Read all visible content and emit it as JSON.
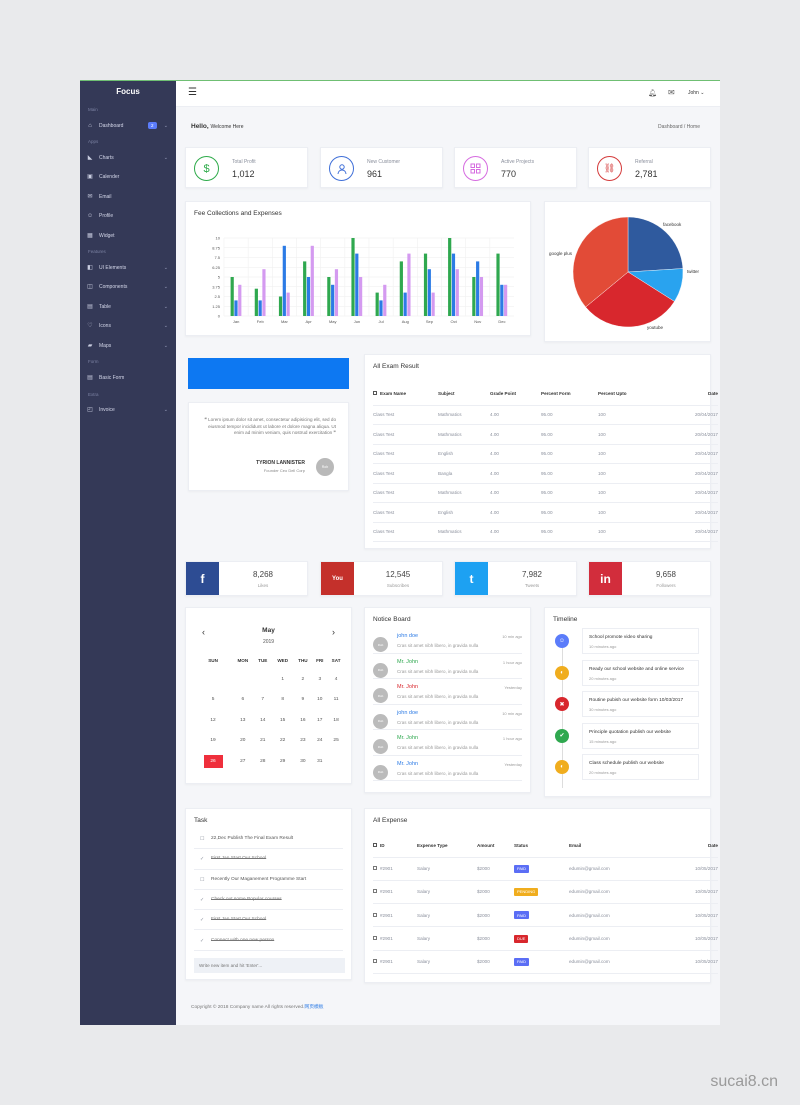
{
  "app": {
    "brand": "Focus"
  },
  "sidebar": {
    "sections": {
      "main": "Main",
      "apps": "Apps",
      "features": "Features",
      "form": "Form",
      "extra": "Extra"
    },
    "dashboard": {
      "label": "Dashboard",
      "badge": "2"
    },
    "apps": [
      {
        "label": "Charts"
      },
      {
        "label": "Calender"
      },
      {
        "label": "Email"
      },
      {
        "label": "Profile"
      },
      {
        "label": "Widget"
      }
    ],
    "features": [
      {
        "label": "UI Elements"
      },
      {
        "label": "Components"
      },
      {
        "label": "Table"
      },
      {
        "label": "Icons"
      },
      {
        "label": "Maps"
      }
    ],
    "form": [
      {
        "label": "Basic Form"
      }
    ],
    "extra": [
      {
        "label": "Invoice"
      }
    ]
  },
  "topbar": {
    "user": "John"
  },
  "header": {
    "hello": "Hello,",
    "welcome": "Welcome Here",
    "breadcrumb": [
      "Dashboard",
      "Home"
    ]
  },
  "stats": [
    {
      "label": "Total Profit",
      "value": "1,012",
      "color": "#2eab4a",
      "icon": "$"
    },
    {
      "label": "New Customer",
      "value": "961",
      "color": "#3f6fd8",
      "icon": "user"
    },
    {
      "label": "Active Projects",
      "value": "770",
      "color": "#d66be0",
      "icon": "grid"
    },
    {
      "label": "Referral",
      "value": "2,781",
      "color": "#d43a3a",
      "icon": "link"
    }
  ],
  "fee_chart": {
    "title": "Fee Collections and Expenses"
  },
  "chart_data": [
    {
      "type": "bar",
      "title": "Fee Collections and Expenses",
      "categories": [
        "Jan",
        "Feb",
        "Mar",
        "Apr",
        "May",
        "Jun",
        "Jul",
        "Aug",
        "Sep",
        "Oct",
        "Nov",
        "Dec"
      ],
      "ylim": [
        0,
        10
      ],
      "yticks": [
        "10",
        "8.75",
        "7.5",
        "6.25",
        "5",
        "3.75",
        "2.5",
        "1.25",
        "0"
      ],
      "series": [
        {
          "color": "#2fa84f",
          "values": [
            5,
            3.5,
            2.5,
            7,
            5,
            10,
            3,
            7,
            8,
            10,
            5,
            8
          ]
        },
        {
          "color": "#2c7be5",
          "values": [
            2,
            2,
            9,
            5,
            4,
            8,
            2,
            3,
            6,
            8,
            7,
            4
          ]
        },
        {
          "color": "#d49af0",
          "values": [
            4,
            6,
            3,
            9,
            6,
            5,
            4,
            8,
            3,
            6,
            5,
            4
          ]
        }
      ]
    },
    {
      "type": "pie",
      "labels": [
        "facebook",
        "twitter",
        "youtube",
        "google plus"
      ],
      "values": [
        24,
        10,
        30,
        36
      ],
      "colors": [
        "#2f5a9e",
        "#29a3ef",
        "#d8272d",
        "#e24b37"
      ]
    }
  ],
  "exam": {
    "title": "All Exam Result",
    "headers": [
      "Exam Name",
      "Subject",
      "Grade Point",
      "Percent Form",
      "Percent Upto",
      "Date"
    ],
    "rows": [
      [
        "Class Test",
        "Mathmatics",
        "4.00",
        "95.00",
        "100",
        "20/04/2017"
      ],
      [
        "Class Test",
        "Mathmatics",
        "4.00",
        "95.00",
        "100",
        "20/04/2017"
      ],
      [
        "Class Test",
        "English",
        "4.00",
        "95.00",
        "100",
        "20/04/2017"
      ],
      [
        "Class Test",
        "Bangla",
        "4.00",
        "95.00",
        "100",
        "20/04/2017"
      ],
      [
        "Class Test",
        "Mathmatics",
        "4.00",
        "95.00",
        "100",
        "20/04/2017"
      ],
      [
        "Class Test",
        "English",
        "4.00",
        "95.00",
        "100",
        "20/04/2017"
      ],
      [
        "Class Test",
        "Mathmatics",
        "4.00",
        "95.00",
        "100",
        "20/04/2017"
      ]
    ]
  },
  "quote": {
    "text": "Lorem ipsum dolor sit amet, consectetur adipisicing elit, sed do eiusmod tempor incididunt ut labore et dolore magna aliqua. Ut enim ad minim veniam, quis nostrud exercitation",
    "author": "TYRION LANNISTER",
    "role": "Founder Ceo Dell Corp",
    "avatar": "Rob"
  },
  "social": [
    {
      "count": "8,268",
      "label": "Likes",
      "color": "#2d4c93",
      "icon": "f"
    },
    {
      "count": "12,545",
      "label": "Subscribes",
      "color": "#c4302b",
      "icon": "You"
    },
    {
      "count": "7,982",
      "label": "Tweets",
      "color": "#1da1f2",
      "icon": "t"
    },
    {
      "count": "9,658",
      "label": "Followers",
      "color": "#d22d3c",
      "icon": "in"
    }
  ],
  "calendar": {
    "month": "May",
    "year": "2019",
    "prev": "‹",
    "next": "›",
    "days": [
      "SUN",
      "MON",
      "TUE",
      "WED",
      "THU",
      "FRI",
      "SAT"
    ],
    "weeks": [
      [
        "",
        "",
        "",
        "1",
        "2",
        "3",
        "4"
      ],
      [
        "5",
        "6",
        "7",
        "8",
        "9",
        "10",
        "11"
      ],
      [
        "12",
        "13",
        "14",
        "15",
        "16",
        "17",
        "18"
      ],
      [
        "19",
        "20",
        "21",
        "22",
        "23",
        "24",
        "25"
      ],
      [
        "26",
        "27",
        "28",
        "29",
        "30",
        "31",
        ""
      ]
    ],
    "today": "26"
  },
  "notice": {
    "title": "Notice Board",
    "items": [
      {
        "name": "john doe",
        "color": "#2c7be5",
        "text": "Cras sit amet nibh libero, in gravida nulla",
        "time": "10 min ago"
      },
      {
        "name": "Mr. John",
        "color": "#2fa84f",
        "text": "Cras sit amet nibh libero, in gravida nulla",
        "time": "1 hour ago"
      },
      {
        "name": "Mr. John",
        "color": "#d8272d",
        "text": "Cras sit amet nibh libero, in gravida nulla",
        "time": "Yesterday"
      },
      {
        "name": "john doe",
        "color": "#2c7be5",
        "text": "Cras sit amet nibh libero, in gravida nulla",
        "time": "10 min ago"
      },
      {
        "name": "Mr. John",
        "color": "#2fa84f",
        "text": "Cras sit amet nibh libero, in gravida nulla",
        "time": "1 hour ago"
      },
      {
        "name": "Mr. John",
        "color": "#2c7be5",
        "text": "Cras sit amet nibh libero, in gravida nulla",
        "time": "Yesterday"
      }
    ]
  },
  "timeline": {
    "title": "Timeline",
    "items": [
      {
        "title": "School promote video sharing",
        "time": "10 minutes ago",
        "color": "#5b7cfa"
      },
      {
        "title": "Ready our school website and online service",
        "time": "20 minutes ago",
        "color": "#f0ad1e"
      },
      {
        "title": "Routine pubish our website form 10/03/2017",
        "time": "30 minutes ago",
        "color": "#d8272d"
      },
      {
        "title": "Principle quotation publish our website",
        "time": "15 minutes ago",
        "color": "#2fa84f"
      },
      {
        "title": "Class schedule publish our website",
        "time": "20 minutes ago",
        "color": "#f0ad1e"
      }
    ]
  },
  "task": {
    "title": "Task",
    "items": [
      {
        "text": "22,Dec Publish The Final Exam Result",
        "done": false
      },
      {
        "text": "First Jan Start Our School",
        "done": true
      },
      {
        "text": "Recently Our Maganement Programme Start",
        "done": false
      },
      {
        "text": "Check out some Popular courses",
        "done": true
      },
      {
        "text": "First Jan Start Our School",
        "done": true
      },
      {
        "text": "Connect with one new person",
        "done": true
      }
    ],
    "placeholder": "Write new item and hit 'Enter'..."
  },
  "expense": {
    "title": "All Expense",
    "headers": [
      "ID",
      "Expense Type",
      "Amount",
      "Status",
      "Email",
      "Date"
    ],
    "rows": [
      {
        "id": "#2901",
        "type": "Salary",
        "amount": "$2000",
        "status": "PAID",
        "color": "#5b6ef5",
        "email": "edumin@gmail.com",
        "date": "10/05/2017"
      },
      {
        "id": "#2901",
        "type": "Salary",
        "amount": "$2000",
        "status": "PENDING",
        "color": "#f0ad1e",
        "email": "edumin@gmail.com",
        "date": "10/05/2017"
      },
      {
        "id": "#2901",
        "type": "Salary",
        "amount": "$2000",
        "status": "PAID",
        "color": "#5b6ef5",
        "email": "edumin@gmail.com",
        "date": "10/05/2017"
      },
      {
        "id": "#2901",
        "type": "Salary",
        "amount": "$2000",
        "status": "DUE",
        "color": "#d8272d",
        "email": "edumin@gmail.com",
        "date": "10/05/2017"
      },
      {
        "id": "#2901",
        "type": "Salary",
        "amount": "$2000",
        "status": "PAID",
        "color": "#5b6ef5",
        "email": "edumin@gmail.com",
        "date": "10/05/2017"
      }
    ]
  },
  "footer": {
    "text": "Copyright © 2018 Company name All rights reserved.",
    "link": "网页模板"
  },
  "watermark": {
    "text": "sucai8.cn"
  }
}
